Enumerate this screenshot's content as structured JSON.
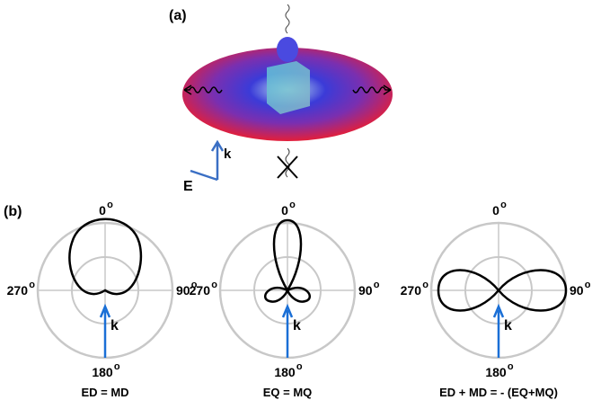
{
  "panel_a": {
    "label": "(a)",
    "k_label": "k",
    "e_label": "E"
  },
  "panel_b": {
    "label": "(b)",
    "degree_mark": "o",
    "angles": [
      "0",
      "90",
      "180",
      "270"
    ],
    "k_label": "k",
    "captions": [
      "ED = MD",
      "EQ = MQ",
      "ED + MD = - (EQ+MQ)"
    ]
  }
}
